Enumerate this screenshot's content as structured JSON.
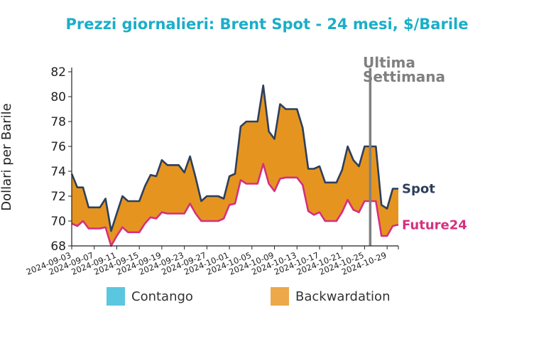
{
  "chart_data": {
    "type": "area",
    "title": "Prezzi giornalieri: Brent Spot - 24 mesi, $/Barile",
    "xlabel": "",
    "ylabel": "Dollari per Barile",
    "ylim": [
      68,
      82
    ],
    "yticks": [
      68,
      70,
      72,
      74,
      76,
      78,
      80,
      82
    ],
    "xticks": [
      "2024-09-03",
      "2024-09-07",
      "2024-09-11",
      "2024-09-15",
      "2024-09-19",
      "2024-09-23",
      "2024-09-27",
      "2024-10-01",
      "2024-10-05",
      "2024-10-09",
      "2024-10-13",
      "2024-10-17",
      "2024-10-21",
      "2024-10-25",
      "2024-10-29"
    ],
    "dates": [
      "2024-09-03",
      "2024-09-04",
      "2024-09-05",
      "2024-09-06",
      "2024-09-07",
      "2024-09-08",
      "2024-09-09",
      "2024-09-10",
      "2024-09-11",
      "2024-09-12",
      "2024-09-13",
      "2024-09-14",
      "2024-09-15",
      "2024-09-16",
      "2024-09-17",
      "2024-09-18",
      "2024-09-19",
      "2024-09-20",
      "2024-09-21",
      "2024-09-22",
      "2024-09-23",
      "2024-09-24",
      "2024-09-25",
      "2024-09-26",
      "2024-09-27",
      "2024-09-28",
      "2024-09-29",
      "2024-09-30",
      "2024-10-01",
      "2024-10-02",
      "2024-10-03",
      "2024-10-04",
      "2024-10-05",
      "2024-10-06",
      "2024-10-07",
      "2024-10-08",
      "2024-10-09",
      "2024-10-10",
      "2024-10-11",
      "2024-10-12",
      "2024-10-13",
      "2024-10-14",
      "2024-10-15",
      "2024-10-16",
      "2024-10-17",
      "2024-10-18",
      "2024-10-19",
      "2024-10-20",
      "2024-10-21",
      "2024-10-22",
      "2024-10-23",
      "2024-10-24",
      "2024-10-25",
      "2024-10-26",
      "2024-10-27",
      "2024-10-28",
      "2024-10-29",
      "2024-10-30",
      "2024-10-31"
    ],
    "series": [
      {
        "name": "Spot",
        "color": "#2e3f5c",
        "values": [
          73.8,
          72.7,
          72.7,
          71.1,
          71.1,
          71.1,
          71.8,
          69.2,
          70.6,
          72.0,
          71.6,
          71.6,
          71.6,
          72.8,
          73.7,
          73.6,
          74.9,
          74.5,
          74.5,
          74.5,
          73.9,
          75.2,
          73.5,
          71.6,
          72.0,
          72.0,
          72.0,
          71.8,
          73.6,
          73.8,
          77.6,
          78.0,
          78.0,
          78.0,
          80.9,
          77.2,
          76.6,
          79.4,
          79.0,
          79.0,
          79.0,
          77.5,
          74.2,
          74.2,
          74.4,
          73.1,
          73.1,
          73.1,
          74.1,
          76.0,
          74.9,
          74.4,
          76.0,
          76.0,
          76.0,
          71.3,
          71.0,
          72.6,
          72.6
        ]
      },
      {
        "name": "Future24",
        "color": "#d62f7f",
        "values": [
          69.8,
          69.6,
          70.0,
          69.4,
          69.4,
          69.4,
          69.5,
          68.0,
          68.8,
          69.5,
          69.1,
          69.1,
          69.1,
          69.8,
          70.3,
          70.2,
          70.7,
          70.6,
          70.6,
          70.6,
          70.6,
          71.4,
          70.6,
          70.0,
          70.0,
          70.0,
          70.0,
          70.2,
          71.3,
          71.4,
          73.3,
          73.0,
          73.0,
          73.0,
          74.6,
          73.0,
          72.4,
          73.4,
          73.5,
          73.5,
          73.5,
          72.9,
          70.8,
          70.5,
          70.7,
          70.0,
          70.0,
          70.0,
          70.7,
          71.7,
          70.9,
          70.7,
          71.6,
          71.6,
          71.6,
          68.8,
          68.8,
          69.6,
          69.7
        ]
      }
    ],
    "annotation": {
      "text_line1": "Ultima",
      "text_line2": "Settimana",
      "date": "2024-10-26",
      "color": "#808080"
    },
    "legend": {
      "position": "bottom",
      "items": [
        {
          "label": "Contango",
          "color": "#5bc6e0"
        },
        {
          "label": "Backwardation",
          "color": "#eda84a"
        }
      ]
    },
    "fill_color": "#e5951f",
    "grid": false
  }
}
